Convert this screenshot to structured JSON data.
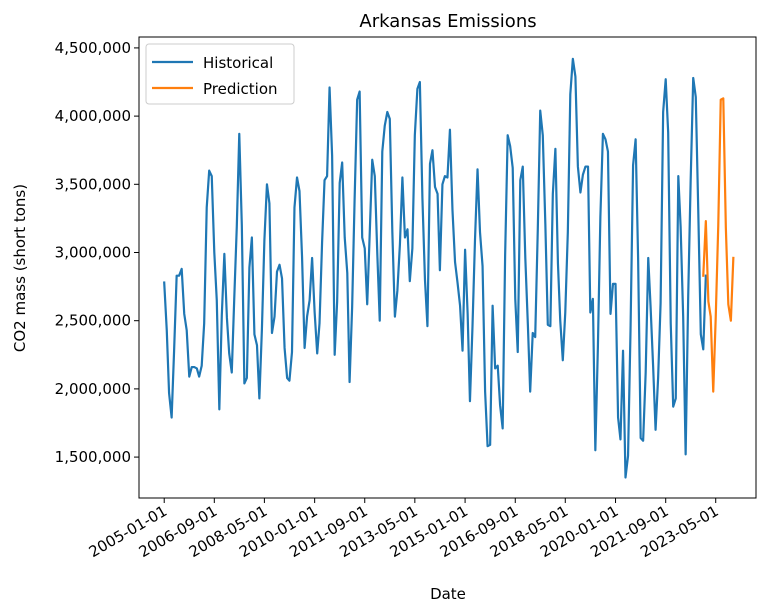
{
  "chart_data": {
    "type": "line",
    "title": "Arkansas Emissions",
    "xlabel": "Date",
    "ylabel": "CO2 mass (short tons)",
    "x_ticks": [
      "2005-01-01",
      "2006-09-01",
      "2008-05-01",
      "2010-01-01",
      "2011-09-01",
      "2013-05-01",
      "2015-01-01",
      "2016-09-01",
      "2018-05-01",
      "2020-01-01",
      "2021-09-01",
      "2023-05-01"
    ],
    "y_ticks": [
      1500000,
      2000000,
      2500000,
      3000000,
      3500000,
      4000000,
      4500000
    ],
    "y_tick_labels": [
      "1,500,000",
      "2,000,000",
      "2,500,000",
      "3,000,000",
      "3,500,000",
      "4,000,000",
      "4,500,000"
    ],
    "xlim": [
      "2004-03-01",
      "2024-09-01"
    ],
    "ylim": [
      1200000,
      4580000
    ],
    "legend_position": "top-left",
    "grid": false,
    "series": [
      {
        "name": "Historical",
        "color": "#1f77b4",
        "start": "2005-01",
        "values": [
          2780000,
          2430000,
          1970000,
          1790000,
          2280000,
          2830000,
          2830000,
          2880000,
          2550000,
          2430000,
          2090000,
          2160000,
          2160000,
          2150000,
          2090000,
          2170000,
          2480000,
          3330000,
          3600000,
          3560000,
          3000000,
          2650000,
          1850000,
          2540000,
          2990000,
          2520000,
          2260000,
          2120000,
          2660000,
          3190000,
          3870000,
          3200000,
          2040000,
          2080000,
          2890000,
          3110000,
          2400000,
          2320000,
          1930000,
          2440000,
          3090000,
          3500000,
          3360000,
          2410000,
          2530000,
          2860000,
          2910000,
          2810000,
          2300000,
          2080000,
          2060000,
          2270000,
          3330000,
          3550000,
          3450000,
          2970000,
          2300000,
          2530000,
          2650000,
          2960000,
          2560000,
          2260000,
          2480000,
          3070000,
          3530000,
          3560000,
          4210000,
          3710000,
          2250000,
          2640000,
          3510000,
          3660000,
          3110000,
          2850000,
          2050000,
          2600000,
          3390000,
          4120000,
          4180000,
          3110000,
          3030000,
          2620000,
          3150000,
          3680000,
          3560000,
          2980000,
          2500000,
          3740000,
          3930000,
          4030000,
          3980000,
          3150000,
          2530000,
          2720000,
          3060000,
          3550000,
          3110000,
          3170000,
          2790000,
          3030000,
          3860000,
          4200000,
          4250000,
          3400000,
          2800000,
          2460000,
          3650000,
          3750000,
          3480000,
          3430000,
          2870000,
          3500000,
          3560000,
          3550000,
          3900000,
          3310000,
          2930000,
          2780000,
          2610000,
          2280000,
          3020000,
          2550000,
          1910000,
          2460000,
          3090000,
          3610000,
          3150000,
          2900000,
          1980000,
          1580000,
          1590000,
          2610000,
          2150000,
          2170000,
          1880000,
          1710000,
          2980000,
          3860000,
          3780000,
          3620000,
          2660000,
          2270000,
          3530000,
          3630000,
          2960000,
          2470000,
          1980000,
          2410000,
          2380000,
          3160000,
          4040000,
          3860000,
          3210000,
          2470000,
          2460000,
          3430000,
          3760000,
          2920000,
          2500000,
          2210000,
          2560000,
          3150000,
          4160000,
          4420000,
          4290000,
          3630000,
          3440000,
          3570000,
          3630000,
          3630000,
          2560000,
          2660000,
          1550000,
          2310000,
          3260000,
          3870000,
          3830000,
          3740000,
          2550000,
          2770000,
          2770000,
          1790000,
          1630000,
          2280000,
          1350000,
          1510000,
          2430000,
          3640000,
          3830000,
          2960000,
          1640000,
          1620000,
          2120000,
          2960000,
          2610000,
          2170000,
          1700000,
          2080000,
          2630000,
          4030000,
          4270000,
          3880000,
          2480000,
          1870000,
          1930000,
          3560000,
          3190000,
          2530000,
          1520000,
          2680000,
          3530000,
          4280000,
          4140000,
          3310000,
          2400000,
          2290000,
          2830000
        ]
      },
      {
        "name": "Prediction",
        "color": "#ff7f0e",
        "start": "2022-12",
        "values": [
          2830000,
          3230000,
          2640000,
          2530000,
          1980000,
          2520000,
          3200000,
          4120000,
          4130000,
          3180000,
          2620000,
          2500000,
          2960000
        ]
      }
    ]
  }
}
